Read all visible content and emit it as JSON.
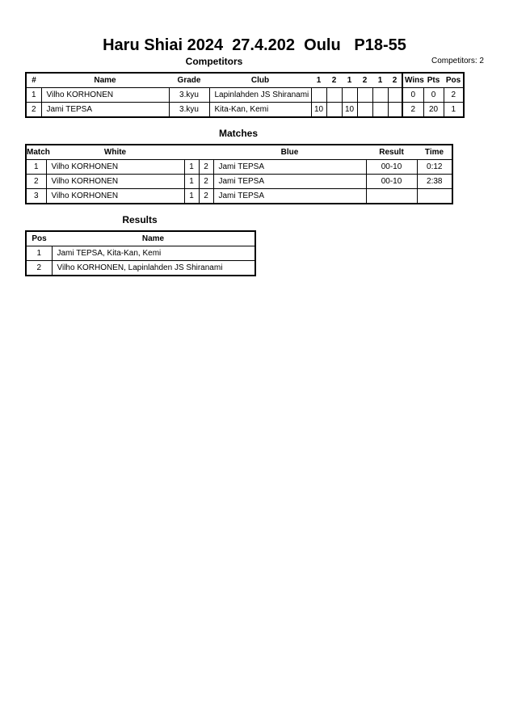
{
  "title": "Haru Shiai 2024  27.4.202  Oulu   P18-55",
  "competitors": {
    "heading": "Competitors",
    "count": "Competitors: 2",
    "headers": [
      "#",
      "Name",
      "Grade",
      "Club",
      "1",
      "2",
      "1",
      "2",
      "1",
      "2",
      "Wins",
      "Pts",
      "Pos"
    ],
    "rows": [
      [
        "1",
        "Vilho KORHONEN",
        "3.kyu",
        "Lapinlahden JS Shiranami",
        "",
        "",
        "",
        "",
        "",
        "",
        "0",
        "0",
        "2"
      ],
      [
        "2",
        "Jami TEPSA",
        "3.kyu",
        "Kita-Kan, Kemi",
        "10",
        "",
        "10",
        "",
        "",
        "",
        "2",
        "20",
        "1"
      ]
    ]
  },
  "matches": {
    "heading": "Matches",
    "headers": [
      "Match",
      "White",
      "",
      "",
      "Blue",
      "Result",
      "Time"
    ],
    "rows": [
      [
        "1",
        "Vilho KORHONEN",
        "1",
        "2",
        "Jami TEPSA",
        "00-10",
        "0:12"
      ],
      [
        "2",
        "Vilho KORHONEN",
        "1",
        "2",
        "Jami TEPSA",
        "00-10",
        "2:38"
      ],
      [
        "3",
        "Vilho KORHONEN",
        "1",
        "2",
        "Jami TEPSA",
        "",
        ""
      ]
    ]
  },
  "results": {
    "heading": "Results",
    "headers": [
      "Pos",
      "Name"
    ],
    "rows": [
      [
        "1",
        "Jami TEPSA, Kita-Kan, Kemi"
      ],
      [
        "2",
        "Vilho KORHONEN, Lapinlahden JS Shiranami"
      ]
    ]
  }
}
